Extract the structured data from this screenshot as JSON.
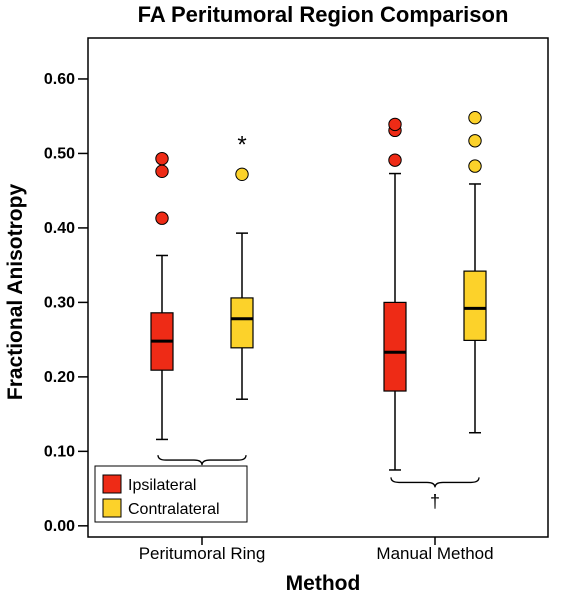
{
  "chart_data": {
    "type": "box",
    "title": "FA Peritumoral Region Comparison",
    "xlabel": "Method",
    "ylabel": "Fractional Anisotropy",
    "ylim": [
      -0.015,
      0.655
    ],
    "yticks": [
      "0.00",
      "0.10",
      "0.20",
      "0.30",
      "0.40",
      "0.50",
      "0.60"
    ],
    "grid": false,
    "legend_position": "bottom-left",
    "categories": [
      "Peritumoral Ring",
      "Manual Method"
    ],
    "series": [
      {
        "name": "Ipsilateral",
        "color": "#ee2b16",
        "boxes": [
          {
            "whisker_low": 0.116,
            "q1": 0.209,
            "median": 0.248,
            "q3": 0.286,
            "whisker_high": 0.363,
            "outliers": [
              0.413,
              0.476,
              0.493
            ]
          },
          {
            "whisker_low": 0.075,
            "q1": 0.181,
            "median": 0.233,
            "q3": 0.3,
            "whisker_high": 0.473,
            "outliers": [
              0.491,
              0.531,
              0.539
            ]
          }
        ]
      },
      {
        "name": "Contralateral",
        "color": "#fcd22a",
        "boxes": [
          {
            "whisker_low": 0.17,
            "q1": 0.239,
            "median": 0.278,
            "q3": 0.306,
            "whisker_high": 0.393,
            "outliers": [
              0.472
            ],
            "extremes": [
              0.519
            ]
          },
          {
            "whisker_low": 0.125,
            "q1": 0.249,
            "median": 0.292,
            "q3": 0.342,
            "whisker_high": 0.459,
            "outliers": [
              0.483,
              0.517,
              0.548
            ]
          }
        ]
      }
    ],
    "annotations": [
      {
        "text": "†",
        "category_index": 0
      },
      {
        "text": "†",
        "category_index": 1
      }
    ]
  }
}
